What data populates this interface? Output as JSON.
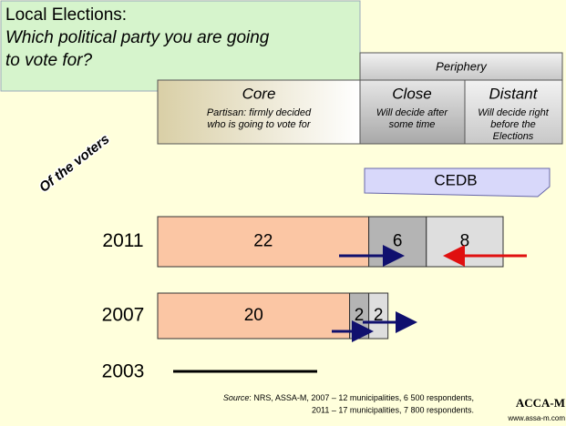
{
  "chart_data": {
    "type": "stacked-bar",
    "title": [
      "Local Elections:",
      "Which political party you are going",
      "to vote for?"
    ],
    "group_header": "Periphery",
    "side_label": "Of the voters",
    "bracket_label": "CEDB",
    "categories": [
      "2011",
      "2007",
      "2003"
    ],
    "series": [
      {
        "name": "Core",
        "subtitle": [
          "Partisan: firmly decided",
          "who is going to vote for"
        ],
        "color": "#fbc6a4",
        "values": [
          22,
          20,
          null
        ]
      },
      {
        "name": "Close",
        "subtitle": [
          "Will decide after",
          "some time"
        ],
        "color": "#b4b4b4",
        "values": [
          6,
          2,
          null
        ]
      },
      {
        "name": "Distant",
        "subtitle": [
          "Will decide right",
          "before the",
          "Elections"
        ],
        "color": "#dedede",
        "values": [
          8,
          2,
          null
        ]
      }
    ],
    "xlim": [
      0,
      36
    ],
    "source": {
      "label": "Source",
      "lines": [
        ": NRS, ASSA-M, 2007 – 12 municipalities, 6 500 respondents,",
        "2011 – 17 municipalities, 7 800 respondents."
      ]
    },
    "brand": "ACCA-M",
    "website": "www.assa-m.com"
  }
}
